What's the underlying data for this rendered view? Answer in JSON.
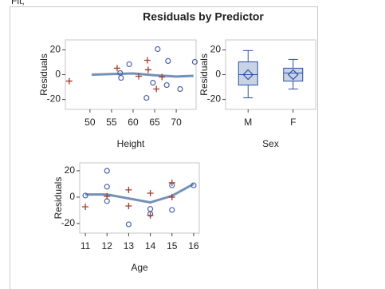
{
  "fragment": "Fit,",
  "title": "Residuals by Predictor",
  "chart_data": [
    {
      "type": "scatter",
      "xlabel": "Height",
      "ylabel": "Residuals",
      "xlim": [
        44.3,
        74.6
      ],
      "ylim": [
        -28,
        28
      ],
      "xticks": [
        50,
        55,
        60,
        65,
        70
      ],
      "yticks": [
        -20,
        0,
        20
      ],
      "series": [
        {
          "marker": "circle",
          "color": "#4a63ab",
          "x": [
            57.2,
            59.1,
            65.7,
            64.6,
            68.1,
            63.1,
            67.8,
            70.9,
            74.3,
            57
          ],
          "values": [
            -2.6,
            8.4,
            20.6,
            -6.5,
            11,
            -18.7,
            -8.4,
            -11.6,
            10.3,
            1.3
          ]
        },
        {
          "marker": "plus",
          "color": "#a8392b",
          "x": [
            45.2,
            56.3,
            63.3,
            63.5,
            66.7,
            65.4,
            61.3
          ],
          "values": [
            -5.2,
            5.2,
            11.6,
            3.9,
            -1.9,
            -11.6,
            -1.3
          ]
        }
      ],
      "fit": {
        "color": "#7391b6",
        "x": [
          50.4,
          55,
          60,
          65,
          70,
          74
        ],
        "values": [
          0,
          0.5,
          1,
          -0.5,
          -1.5,
          -1
        ]
      }
    },
    {
      "type": "box",
      "xlabel": "Sex",
      "ylabel": "Residuals",
      "ylim": [
        -28,
        28
      ],
      "yticks": [
        -20,
        0,
        20
      ],
      "categories": [
        "M",
        "F"
      ],
      "color": "#2b4ea3",
      "fill": "#c8d4e5",
      "boxes": [
        {
          "min": -18.7,
          "q1": -8.4,
          "median": 0,
          "q3": 10.3,
          "max": 19.4,
          "mean": 0
        },
        {
          "min": -11.6,
          "q1": -5.2,
          "median": 1.3,
          "q3": 5.2,
          "max": 12.3,
          "mean": 0
        }
      ]
    },
    {
      "type": "scatter",
      "xlabel": "Age",
      "ylabel": "Residuals",
      "xlim": [
        10.74,
        16.26
      ],
      "ylim": [
        -27.3,
        26
      ],
      "xticks": [
        11,
        12,
        13,
        14,
        15,
        16
      ],
      "yticks": [
        -20,
        0,
        20
      ],
      "series": [
        {
          "marker": "circle",
          "color": "#4a63ab",
          "x": [
            11,
            12,
            12,
            12,
            13,
            14,
            14,
            15,
            15,
            16
          ],
          "values": [
            1.2,
            20,
            7.9,
            -3,
            -20.6,
            -9,
            -12.7,
            9,
            -9.7,
            9
          ]
        },
        {
          "marker": "plus",
          "color": "#a8392b",
          "x": [
            11,
            12,
            13,
            13,
            14,
            14,
            15,
            15
          ],
          "values": [
            -7.3,
            0.6,
            5.5,
            -6.7,
            3,
            -13.9,
            10.9,
            0
          ]
        }
      ],
      "fit": {
        "color": "#7391b6",
        "x": [
          11,
          12,
          13,
          14,
          15,
          16
        ],
        "values": [
          2,
          2,
          -1,
          -4,
          1,
          10
        ]
      }
    }
  ]
}
